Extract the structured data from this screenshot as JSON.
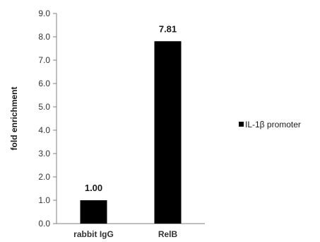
{
  "chart_data": {
    "type": "bar",
    "categories": [
      "rabbit IgG",
      "RelB"
    ],
    "series": [
      {
        "name": "IL-1β promoter",
        "values": [
          1.0,
          7.81
        ],
        "color": "#000000"
      }
    ],
    "data_labels": [
      "1.00",
      "7.81"
    ],
    "ylabel": "fold enrichment",
    "xlabel": "",
    "ylim": [
      0,
      9
    ],
    "yticks": [
      "0.0",
      "1.0",
      "2.0",
      "3.0",
      "4.0",
      "5.0",
      "6.0",
      "7.0",
      "8.0",
      "9.0"
    ],
    "grid": false,
    "legend_position": "right"
  }
}
